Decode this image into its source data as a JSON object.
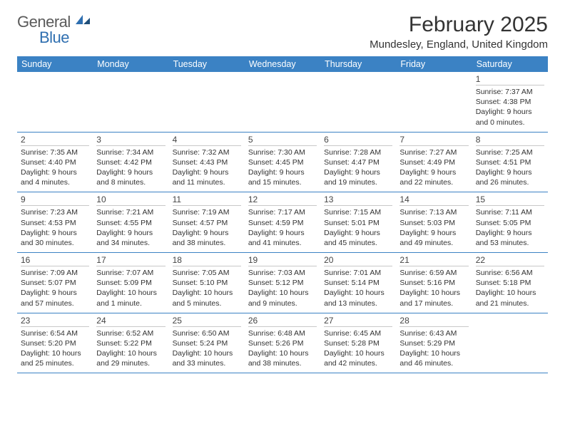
{
  "logo": {
    "word1": "General",
    "word2": "Blue"
  },
  "title": "February 2025",
  "location": "Mundesley, England, United Kingdom",
  "colors": {
    "accent": "#3b82c4",
    "logo_blue": "#2f6fb0",
    "logo_gray": "#5a5a5a",
    "text": "#333333",
    "rule_light": "#c8c8c8",
    "background": "#ffffff"
  },
  "day_names": [
    "Sunday",
    "Monday",
    "Tuesday",
    "Wednesday",
    "Thursday",
    "Friday",
    "Saturday"
  ],
  "weeks": [
    [
      {
        "empty": true
      },
      {
        "empty": true
      },
      {
        "empty": true
      },
      {
        "empty": true
      },
      {
        "empty": true
      },
      {
        "empty": true
      },
      {
        "n": "1",
        "sunrise": "7:37 AM",
        "sunset": "4:38 PM",
        "daylight": "9 hours and 0 minutes."
      }
    ],
    [
      {
        "n": "2",
        "sunrise": "7:35 AM",
        "sunset": "4:40 PM",
        "daylight": "9 hours and 4 minutes."
      },
      {
        "n": "3",
        "sunrise": "7:34 AM",
        "sunset": "4:42 PM",
        "daylight": "9 hours and 8 minutes."
      },
      {
        "n": "4",
        "sunrise": "7:32 AM",
        "sunset": "4:43 PM",
        "daylight": "9 hours and 11 minutes."
      },
      {
        "n": "5",
        "sunrise": "7:30 AM",
        "sunset": "4:45 PM",
        "daylight": "9 hours and 15 minutes."
      },
      {
        "n": "6",
        "sunrise": "7:28 AM",
        "sunset": "4:47 PM",
        "daylight": "9 hours and 19 minutes."
      },
      {
        "n": "7",
        "sunrise": "7:27 AM",
        "sunset": "4:49 PM",
        "daylight": "9 hours and 22 minutes."
      },
      {
        "n": "8",
        "sunrise": "7:25 AM",
        "sunset": "4:51 PM",
        "daylight": "9 hours and 26 minutes."
      }
    ],
    [
      {
        "n": "9",
        "sunrise": "7:23 AM",
        "sunset": "4:53 PM",
        "daylight": "9 hours and 30 minutes."
      },
      {
        "n": "10",
        "sunrise": "7:21 AM",
        "sunset": "4:55 PM",
        "daylight": "9 hours and 34 minutes."
      },
      {
        "n": "11",
        "sunrise": "7:19 AM",
        "sunset": "4:57 PM",
        "daylight": "9 hours and 38 minutes."
      },
      {
        "n": "12",
        "sunrise": "7:17 AM",
        "sunset": "4:59 PM",
        "daylight": "9 hours and 41 minutes."
      },
      {
        "n": "13",
        "sunrise": "7:15 AM",
        "sunset": "5:01 PM",
        "daylight": "9 hours and 45 minutes."
      },
      {
        "n": "14",
        "sunrise": "7:13 AM",
        "sunset": "5:03 PM",
        "daylight": "9 hours and 49 minutes."
      },
      {
        "n": "15",
        "sunrise": "7:11 AM",
        "sunset": "5:05 PM",
        "daylight": "9 hours and 53 minutes."
      }
    ],
    [
      {
        "n": "16",
        "sunrise": "7:09 AM",
        "sunset": "5:07 PM",
        "daylight": "9 hours and 57 minutes."
      },
      {
        "n": "17",
        "sunrise": "7:07 AM",
        "sunset": "5:09 PM",
        "daylight": "10 hours and 1 minute."
      },
      {
        "n": "18",
        "sunrise": "7:05 AM",
        "sunset": "5:10 PM",
        "daylight": "10 hours and 5 minutes."
      },
      {
        "n": "19",
        "sunrise": "7:03 AM",
        "sunset": "5:12 PM",
        "daylight": "10 hours and 9 minutes."
      },
      {
        "n": "20",
        "sunrise": "7:01 AM",
        "sunset": "5:14 PM",
        "daylight": "10 hours and 13 minutes."
      },
      {
        "n": "21",
        "sunrise": "6:59 AM",
        "sunset": "5:16 PM",
        "daylight": "10 hours and 17 minutes."
      },
      {
        "n": "22",
        "sunrise": "6:56 AM",
        "sunset": "5:18 PM",
        "daylight": "10 hours and 21 minutes."
      }
    ],
    [
      {
        "n": "23",
        "sunrise": "6:54 AM",
        "sunset": "5:20 PM",
        "daylight": "10 hours and 25 minutes."
      },
      {
        "n": "24",
        "sunrise": "6:52 AM",
        "sunset": "5:22 PM",
        "daylight": "10 hours and 29 minutes."
      },
      {
        "n": "25",
        "sunrise": "6:50 AM",
        "sunset": "5:24 PM",
        "daylight": "10 hours and 33 minutes."
      },
      {
        "n": "26",
        "sunrise": "6:48 AM",
        "sunset": "5:26 PM",
        "daylight": "10 hours and 38 minutes."
      },
      {
        "n": "27",
        "sunrise": "6:45 AM",
        "sunset": "5:28 PM",
        "daylight": "10 hours and 42 minutes."
      },
      {
        "n": "28",
        "sunrise": "6:43 AM",
        "sunset": "5:29 PM",
        "daylight": "10 hours and 46 minutes."
      },
      {
        "empty": true
      }
    ]
  ],
  "labels": {
    "sunrise": "Sunrise: ",
    "sunset": "Sunset: ",
    "daylight": "Daylight: "
  }
}
